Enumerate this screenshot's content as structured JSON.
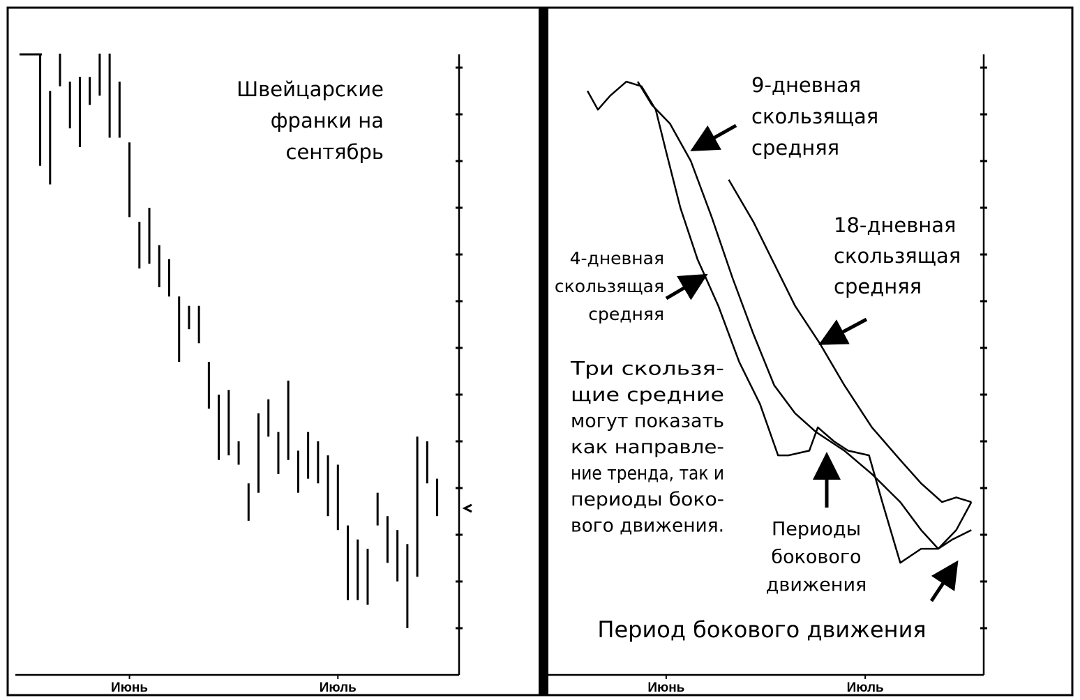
{
  "chart_data": [
    {
      "type": "ohlc",
      "annotations": [
        [
          "Швейцарские",
          "франки на",
          "сентябрь"
        ]
      ],
      "x": [
        0,
        1,
        2,
        3,
        4,
        5,
        6,
        7,
        8,
        9,
        10,
        11,
        12,
        13,
        14,
        15,
        16,
        17,
        18,
        19,
        20,
        21,
        22,
        23,
        24,
        25,
        26,
        27,
        28,
        29,
        30,
        31,
        32,
        33,
        34,
        35,
        36,
        37,
        38,
        39,
        40
      ],
      "high": [
        13.3,
        12.5,
        13.3,
        12.7,
        12.8,
        12.8,
        13.3,
        13.3,
        12.7,
        11.4,
        9.7,
        10.0,
        9.2,
        8.9,
        8.1,
        7.9,
        7.9,
        6.7,
        6.0,
        6.1,
        5.0,
        4.1,
        5.6,
        5.9,
        5.2,
        6.3,
        4.8,
        5.2,
        5.0,
        4.7,
        4.5,
        3.2,
        2.9,
        2.7,
        3.9,
        3.4,
        3.1,
        2.8,
        5.1,
        5.0,
        4.2
      ],
      "low": [
        10.9,
        10.5,
        12.6,
        11.7,
        11.3,
        12.2,
        12.4,
        11.5,
        11.5,
        9.8,
        8.7,
        8.8,
        8.3,
        8.1,
        6.7,
        7.4,
        7.1,
        5.7,
        4.6,
        4.7,
        4.5,
        3.3,
        3.9,
        5.1,
        4.3,
        4.6,
        3.9,
        4.2,
        4.1,
        3.4,
        3.1,
        1.6,
        1.6,
        1.5,
        3.2,
        2.4,
        2.0,
        1.0,
        2.1,
        4.1,
        3.4
      ],
      "color": "#000000",
      "xlim": [
        -2.5,
        42
      ],
      "xticks": [
        {
          "value": 9,
          "label": "Июнь"
        },
        {
          "value": 30,
          "label": "Июль"
        }
      ],
      "ylim": [
        0,
        14
      ],
      "yticks": [
        1,
        2,
        3,
        4,
        5,
        6,
        7,
        8,
        9,
        10,
        11,
        12,
        13
      ]
    },
    {
      "type": "line",
      "annotations": [
        [
          "9-дневная",
          "скользящая",
          "средняя"
        ],
        [
          "18-дневная",
          "скользящая",
          "средняя"
        ],
        [
          "4-дневная",
          "скользящая",
          "средняя"
        ],
        [
          "Три скользя-",
          "щие средние",
          "могут показать",
          "как направле-",
          "ние тренда, так и",
          "периоды боко-",
          "вого движения."
        ],
        [
          "Периоды",
          "бокового",
          "движения"
        ],
        [
          "Период бокового движения"
        ]
      ],
      "series": [
        {
          "color": "#000000",
          "x": [
            0.7,
            1.8,
            3.1,
            4.8,
            6.4,
            7.9,
            9.0,
            10.5,
            12.3,
            14.5,
            16.7,
            18.9,
            20.8,
            21.9,
            24.1,
            25.0,
            26.7,
            28.2,
            30.4,
            31.8,
            33.7,
            35.9,
            37.7,
            39.6,
            41.2
          ],
          "values": [
            12.5,
            12.1,
            12.4,
            12.7,
            12.6,
            12.1,
            11.2,
            10.0,
            8.9,
            7.9,
            6.7,
            5.8,
            4.7,
            4.7,
            4.8,
            5.3,
            5.0,
            4.8,
            4.7,
            3.7,
            2.4,
            2.7,
            2.7,
            3.1,
            3.7
          ]
        },
        {
          "color": "#000000",
          "x": [
            6.0,
            7.5,
            9.4,
            11.6,
            13.8,
            16.0,
            18.2,
            20.4,
            22.6,
            24.8,
            27.8,
            30.7,
            33.7,
            35.9,
            37.7,
            39.2,
            41.2
          ],
          "values": [
            12.7,
            12.2,
            11.8,
            11.0,
            9.8,
            8.5,
            7.3,
            6.2,
            5.6,
            5.2,
            4.8,
            4.3,
            3.7,
            3.1,
            2.7,
            2.9,
            3.1
          ]
        },
        {
          "color": "#000000",
          "x": [
            15.6,
            18.2,
            20.4,
            22.6,
            25.2,
            27.8,
            30.7,
            33.7,
            35.9,
            38.1,
            39.6,
            41.2
          ],
          "values": [
            10.6,
            9.7,
            8.8,
            7.9,
            7.1,
            6.2,
            5.3,
            4.6,
            4.1,
            3.7,
            3.8,
            3.7
          ]
        }
      ],
      "xlim": [
        -3.5,
        42.5
      ],
      "xticks": [
        {
          "value": 9,
          "label": "Июнь"
        },
        {
          "value": 30,
          "label": "Июль"
        }
      ],
      "ylim": [
        0,
        14
      ],
      "yticks": [
        1,
        2,
        3,
        4,
        5,
        6,
        7,
        8,
        9,
        10,
        11,
        12,
        13
      ]
    }
  ]
}
